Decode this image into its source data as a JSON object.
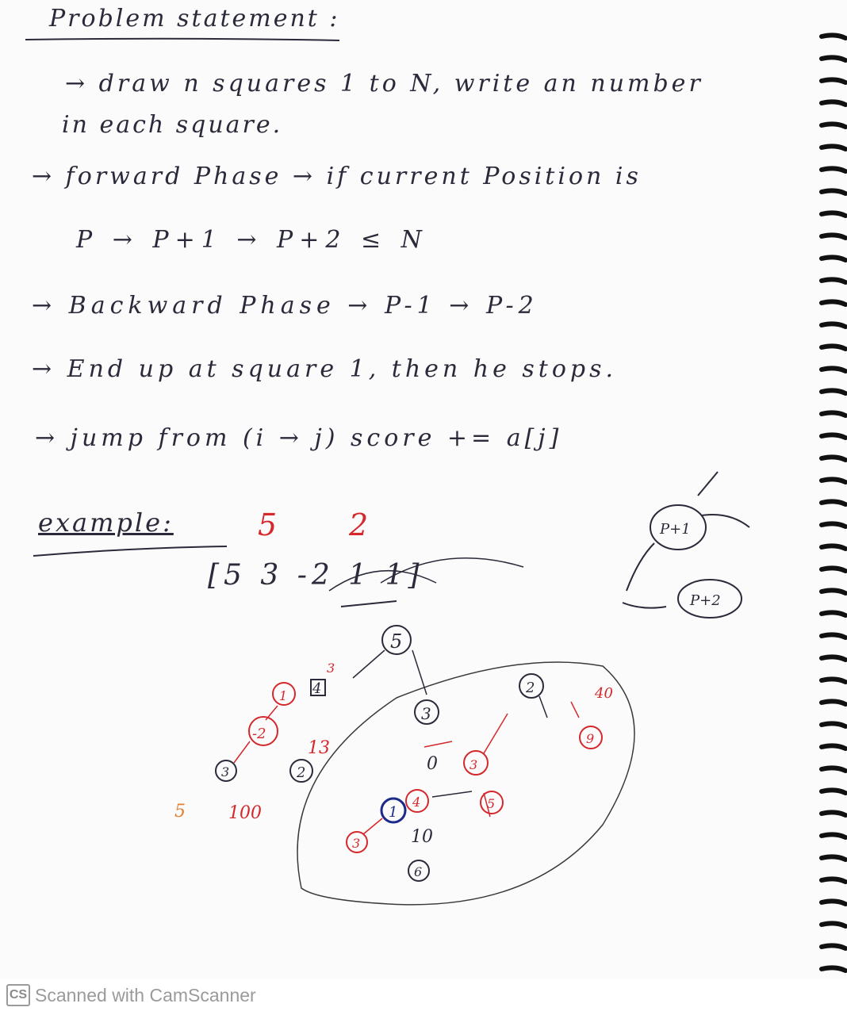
{
  "title": "Problem statement :",
  "lines": [
    "→ draw n squares 1 to N, write an number",
    "in each square.",
    "→ forward Phase → if current Position is",
    "P → P+1 → P+2 ≤ N",
    "→ Backward Phase → P-1 → P-2",
    "→ End up at square 1, then he stops.",
    "→ jump from (i → j) score += a[j]"
  ],
  "example": {
    "label": "example:",
    "n": "5",
    "k": "2",
    "array": "[5  3 -2  1  1]",
    "right_labels": [
      "P+1",
      "P+2"
    ]
  },
  "tree_nodes_black": [
    "5",
    "3",
    "4",
    "2",
    "2",
    "1",
    "0",
    "10",
    "6",
    "3"
  ],
  "tree_nodes_red": [
    "1",
    "-2",
    "3",
    "5",
    "13",
    "100",
    "3",
    "4",
    "5",
    "40",
    "9",
    "3"
  ],
  "footer": {
    "logo": "CS",
    "text": "Scanned with CamScanner"
  },
  "colors": {
    "ink": "#2a2a3a",
    "red_ink": "#d4282c",
    "blue_ink": "#1b2a8a",
    "footer_text": "#9a9a9a"
  }
}
